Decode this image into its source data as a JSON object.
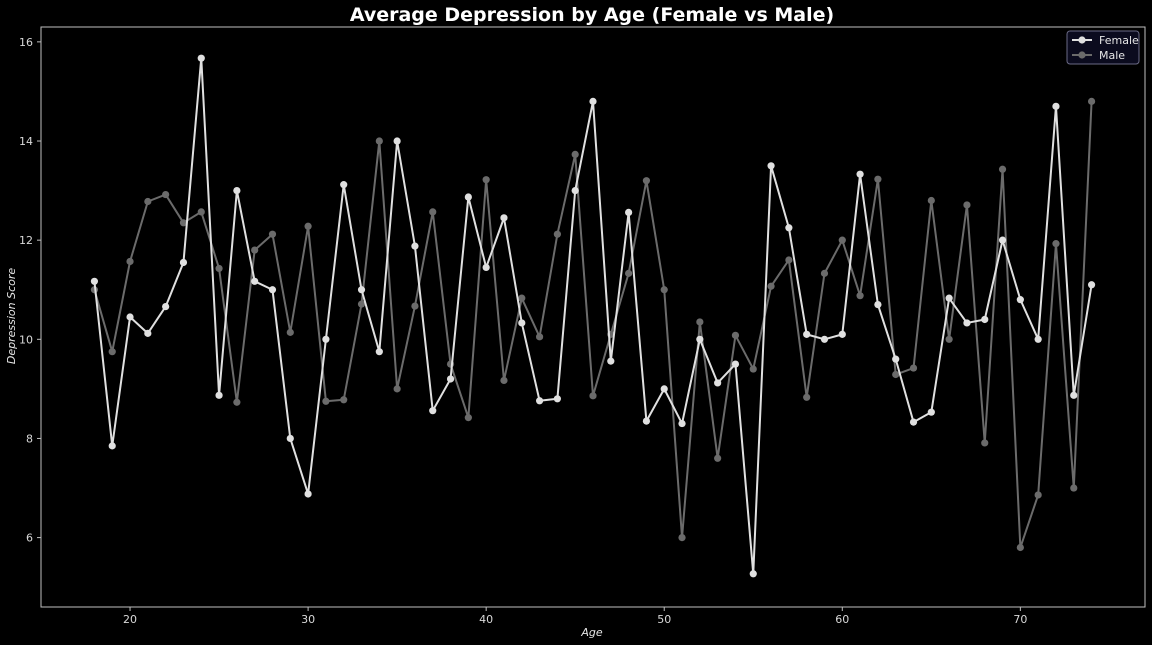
{
  "chart_data": {
    "type": "line",
    "title": "Average Depression by Age (Female vs Male)",
    "xlabel": "Age",
    "ylabel": "Depression Score",
    "xlim": [
      15,
      77
    ],
    "ylim": [
      4.6,
      16.3
    ],
    "xticks": [
      20,
      30,
      40,
      50,
      60,
      70
    ],
    "yticks": [
      6,
      8,
      10,
      12,
      14,
      16
    ],
    "grid": false,
    "legend_position": "top-right",
    "x": [
      18,
      19,
      20,
      21,
      22,
      23,
      24,
      25,
      26,
      27,
      28,
      29,
      30,
      31,
      32,
      33,
      34,
      35,
      36,
      37,
      38,
      39,
      40,
      41,
      42,
      43,
      44,
      45,
      46,
      47,
      48,
      49,
      50,
      51,
      52,
      53,
      54,
      55,
      56,
      57,
      58,
      59,
      60,
      61,
      62,
      63,
      64,
      65,
      66,
      67,
      68,
      69,
      70,
      71,
      72,
      73,
      74
    ],
    "series": [
      {
        "name": "Female",
        "color": "#e0e0e0",
        "values": [
          11.17,
          7.85,
          10.45,
          10.12,
          10.66,
          11.55,
          15.67,
          8.87,
          13.0,
          11.17,
          11.0,
          8.0,
          6.88,
          10.0,
          13.12,
          11.0,
          9.75,
          14.0,
          11.88,
          8.56,
          9.2,
          12.87,
          11.45,
          12.45,
          10.33,
          8.76,
          8.8,
          13.0,
          14.8,
          9.56,
          12.56,
          8.35,
          9.0,
          8.3,
          10.0,
          9.12,
          9.5,
          5.27,
          13.5,
          12.25,
          10.1,
          10.0,
          10.1,
          13.33,
          10.7,
          9.6,
          8.33,
          8.53,
          10.83,
          10.33,
          10.4,
          12.0,
          10.8,
          10.0,
          14.7,
          8.87,
          11.1
        ]
      },
      {
        "name": "Male",
        "color": "#6b6b6b",
        "values": [
          11.0,
          9.75,
          11.57,
          12.78,
          12.92,
          12.35,
          12.57,
          11.43,
          8.73,
          11.8,
          12.12,
          10.14,
          12.28,
          8.75,
          8.78,
          10.71,
          14.0,
          9.0,
          10.67,
          12.57,
          9.5,
          8.42,
          13.22,
          9.17,
          10.83,
          10.05,
          12.12,
          13.73,
          8.86,
          10.1,
          11.33,
          13.2,
          11.0,
          6.0,
          10.35,
          7.6,
          10.08,
          9.4,
          11.07,
          11.6,
          8.83,
          11.33,
          12.0,
          10.88,
          13.23,
          9.29,
          9.42,
          12.8,
          10.0,
          12.71,
          7.91,
          13.43,
          5.8,
          6.86,
          11.93,
          7.0,
          14.8
        ]
      }
    ]
  }
}
